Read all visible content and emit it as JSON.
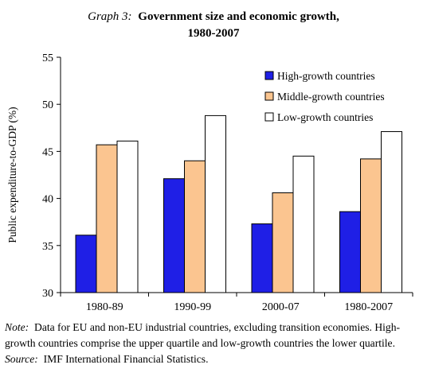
{
  "title": {
    "label": "Graph 3:",
    "line1": "Government size and economic growth,",
    "line2": "1980-2007"
  },
  "chart_data": {
    "type": "bar",
    "title": "Government size and economic growth, 1980-2007",
    "ylabel": "Public expenditure-to-GDP (%)",
    "xlabel": "",
    "ylim": [
      30,
      55
    ],
    "yticks": [
      30,
      35,
      40,
      45,
      50,
      55
    ],
    "grid": false,
    "legend_position": "top-right",
    "categories": [
      "1980-89",
      "1990-99",
      "2000-07",
      "1980-2007"
    ],
    "series": [
      {
        "name": "High-growth countries",
        "color": "#1f1fe6",
        "values": [
          36.1,
          42.1,
          37.3,
          38.6
        ]
      },
      {
        "name": "Middle-growth countries",
        "color": "#fbc590",
        "values": [
          45.7,
          44.0,
          40.6,
          44.2
        ]
      },
      {
        "name": "Low-growth countries",
        "color": "#ffffff",
        "values": [
          46.1,
          48.8,
          44.5,
          47.1
        ]
      }
    ]
  },
  "note": {
    "label": "Note:",
    "text": "Data for EU and non-EU industrial countries, excluding transition economies. High-growth countries comprise the upper quartile and low-growth countries the lower quartile."
  },
  "source": {
    "label": "Source:",
    "text": "IMF International Financial Statistics."
  }
}
